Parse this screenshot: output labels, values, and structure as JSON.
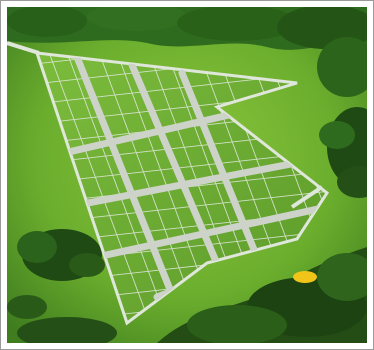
{
  "image": {
    "kind": "aerial-photo",
    "subject": "land-plot-subdivision",
    "palette": {
      "forest_dark": "#1f4a14",
      "forest_mid": "#2f6b1e",
      "meadow": "#67ad2c",
      "meadow_light": "#8cc63c",
      "plot_fill": "#6fae35",
      "road": "#c9cfc6",
      "plot_line": "#e8ede4",
      "highlight": "#f0c419"
    }
  }
}
